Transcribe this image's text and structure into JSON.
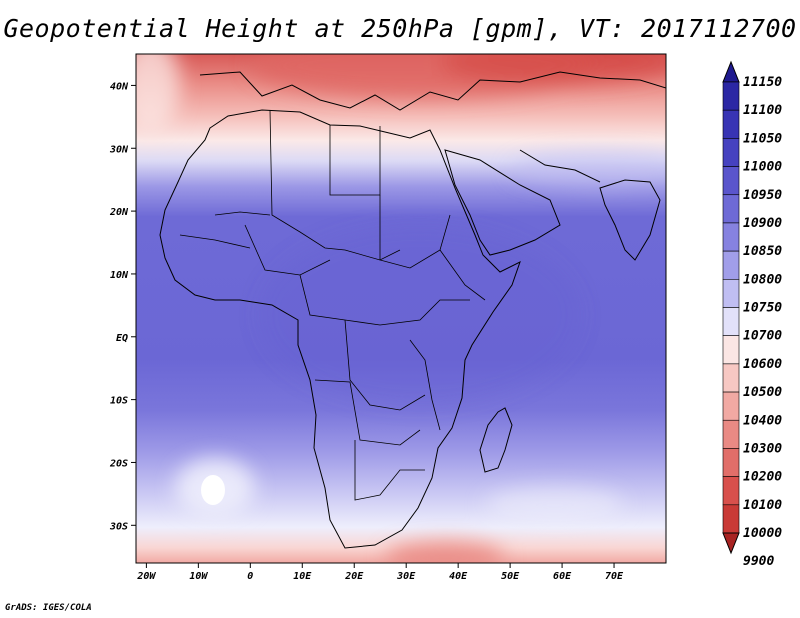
{
  "title": "Geopotential Height at 250hPa [gpm], VT: 2017112700",
  "footer": "GrADS: IGES/COLA",
  "map": {
    "lon_range": [
      -22,
      80
    ],
    "lat_range": [
      -36,
      45
    ],
    "lon_ticks": [
      "20W",
      "10W",
      "0",
      "10E",
      "20E",
      "30E",
      "40E",
      "50E",
      "60E",
      "70E"
    ],
    "lon_tick_values": [
      -20,
      -10,
      0,
      10,
      20,
      30,
      40,
      50,
      60,
      70
    ],
    "lat_ticks": [
      "40N",
      "30N",
      "20N",
      "10N",
      "EQ",
      "10S",
      "20S",
      "30S"
    ],
    "lat_tick_values": [
      40,
      30,
      20,
      10,
      0,
      -10,
      -20,
      -30
    ]
  },
  "colorbar": {
    "labels": [
      "11150",
      "11100",
      "11050",
      "11000",
      "10950",
      "10900",
      "10850",
      "10800",
      "10750",
      "10700",
      "10600",
      "10500",
      "10400",
      "10300",
      "10200",
      "10100",
      "10000",
      "9900"
    ],
    "colors": [
      "#1f1a8f",
      "#2b27a4",
      "#3834b4",
      "#4642c0",
      "#5a55cc",
      "#6e6ad6",
      "#8682e0",
      "#a19ee9",
      "#c0bef2",
      "#e2e1f9",
      "#fbe6e4",
      "#f7c8c3",
      "#f1a9a3",
      "#e98a84",
      "#e16e69",
      "#d8504c",
      "#c93a36",
      "#a82322"
    ],
    "orientation": "vertical",
    "position": "right"
  }
}
